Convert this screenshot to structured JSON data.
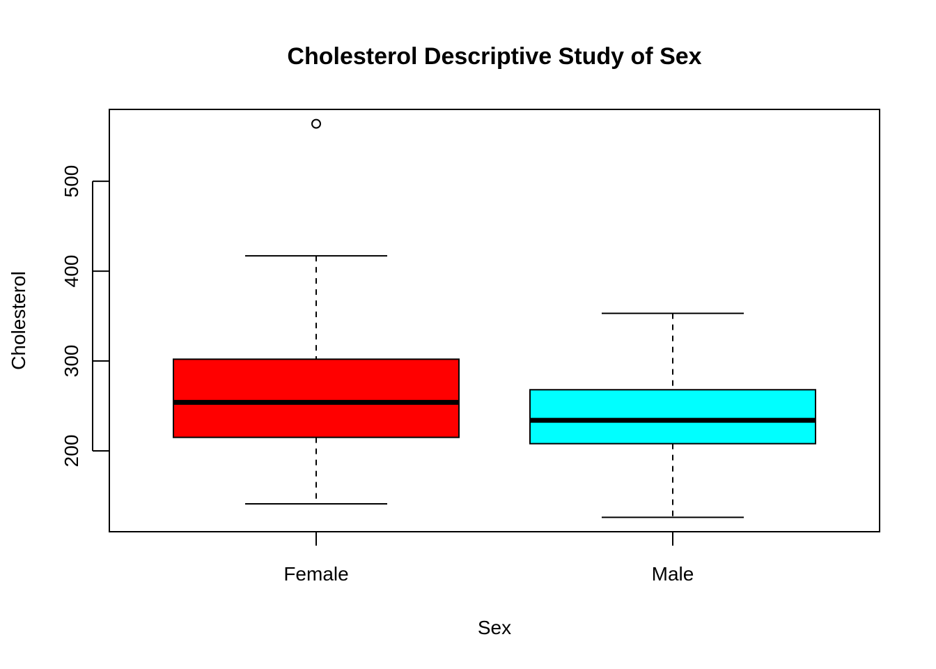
{
  "chart_data": {
    "type": "boxplot",
    "title": "Cholesterol Descriptive Study of Sex",
    "xlabel": "Sex",
    "ylabel": "Cholesterol",
    "ylim": [
      110,
      580
    ],
    "yticks": [
      200,
      300,
      400,
      500
    ],
    "grid": false,
    "categories": [
      "Female",
      "Male"
    ],
    "boxes": [
      {
        "category": "Female",
        "color": "#ff0000",
        "whisker_low": 141,
        "q1": 215,
        "median": 254,
        "q3": 302,
        "whisker_high": 417,
        "outliers": [
          564
        ]
      },
      {
        "category": "Male",
        "color": "#00ffff",
        "whisker_low": 126,
        "q1": 208,
        "median": 234,
        "q3": 268,
        "whisker_high": 353,
        "outliers": []
      }
    ]
  }
}
